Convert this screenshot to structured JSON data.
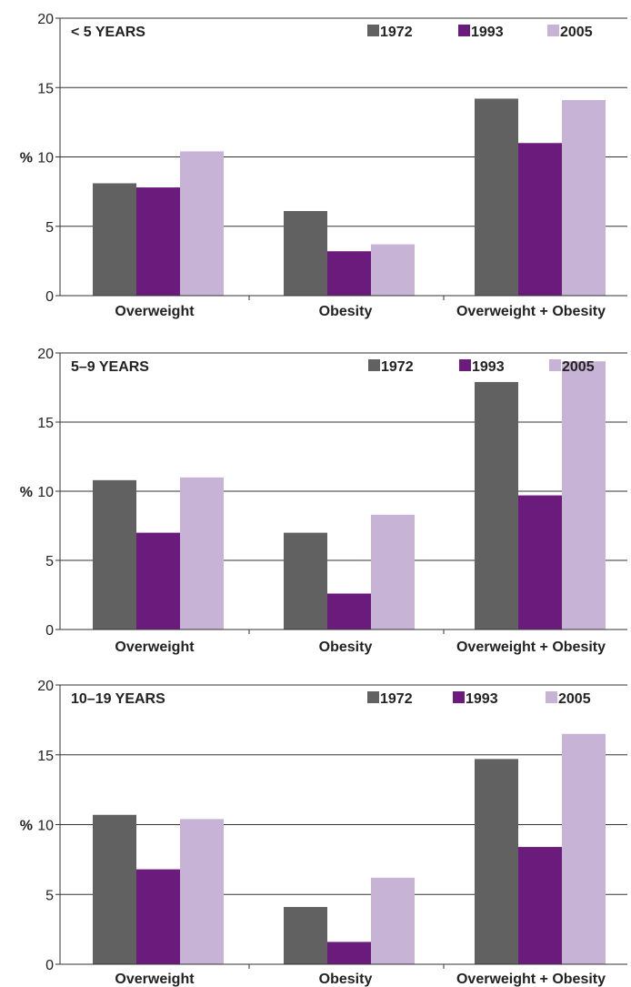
{
  "chart_data": [
    {
      "type": "bar",
      "title": "< 5 YEARS",
      "ylabel": "%",
      "ylim": [
        0,
        20
      ],
      "yticks": [
        0,
        5,
        10,
        15,
        20
      ],
      "grid": true,
      "legend_position": "top-right",
      "categories": [
        "Overweight",
        "Obesity",
        "Overweight + Obesity"
      ],
      "series": [
        {
          "name": "1972",
          "color": "#616161",
          "values": [
            8.1,
            6.1,
            14.2
          ]
        },
        {
          "name": "1993",
          "color": "#6a1b7b",
          "values": [
            7.8,
            3.2,
            11.0
          ]
        },
        {
          "name": "2005",
          "color": "#c7b3d6",
          "values": [
            10.4,
            3.7,
            14.1
          ]
        }
      ]
    },
    {
      "type": "bar",
      "title": "5–9 YEARS",
      "ylabel": "%",
      "ylim": [
        0,
        20
      ],
      "yticks": [
        0,
        5,
        10,
        15,
        20
      ],
      "grid": true,
      "legend_position": "top-right",
      "categories": [
        "Overweight",
        "Obesity",
        "Overweight + Obesity"
      ],
      "series": [
        {
          "name": "1972",
          "color": "#616161",
          "values": [
            10.8,
            7.0,
            17.9
          ]
        },
        {
          "name": "1993",
          "color": "#6a1b7b",
          "values": [
            7.0,
            2.6,
            9.7
          ]
        },
        {
          "name": "2005",
          "color": "#c7b3d6",
          "values": [
            11.0,
            8.3,
            19.4
          ]
        }
      ]
    },
    {
      "type": "bar",
      "title": "10–19 YEARS",
      "ylabel": "%",
      "ylim": [
        0,
        20
      ],
      "yticks": [
        0,
        5,
        10,
        15,
        20
      ],
      "grid": true,
      "legend_position": "top-right",
      "categories": [
        "Overweight",
        "Obesity",
        "Overweight + Obesity"
      ],
      "series": [
        {
          "name": "1972",
          "color": "#616161",
          "values": [
            10.7,
            4.1,
            14.7
          ]
        },
        {
          "name": "1993",
          "color": "#6a1b7b",
          "values": [
            6.8,
            1.6,
            8.4
          ]
        },
        {
          "name": "2005",
          "color": "#c7b3d6",
          "values": [
            10.4,
            6.2,
            16.5
          ]
        }
      ]
    }
  ]
}
